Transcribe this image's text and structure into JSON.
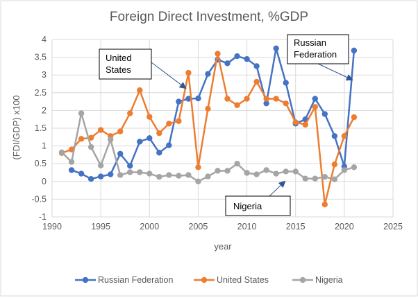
{
  "chart_data": {
    "type": "line",
    "title": "Foreign Direct Investment, %GDP",
    "xlabel": "year",
    "ylabel": "(FDI/GDP) x100",
    "xlim": [
      1990,
      2025
    ],
    "ylim": [
      -1,
      4
    ],
    "xticks": [
      "1990",
      "1995",
      "2000",
      "2005",
      "2010",
      "2015",
      "2020",
      "2025"
    ],
    "yticks": [
      "-1",
      "-0.5",
      "0",
      "0.5",
      "1",
      "1.5",
      "2",
      "2.5",
      "3",
      "3.5",
      "4"
    ],
    "grid": true,
    "legend_position": "bottom",
    "series": [
      {
        "name": "Russian Federation",
        "color": "#4472c4",
        "x": [
          1992,
          1993,
          1994,
          1995,
          1996,
          1997,
          1998,
          1999,
          2000,
          2001,
          2002,
          2003,
          2004,
          2005,
          2006,
          2007,
          2008,
          2009,
          2010,
          2011,
          2012,
          2013,
          2014,
          2015,
          2016,
          2017,
          2018,
          2019,
          2020,
          2021
        ],
        "y": [
          0.32,
          0.22,
          0.07,
          0.14,
          0.2,
          0.78,
          0.44,
          1.12,
          1.22,
          0.81,
          1.02,
          2.25,
          2.33,
          2.34,
          3.03,
          3.43,
          3.33,
          3.53,
          3.45,
          3.25,
          2.2,
          3.75,
          2.78,
          1.63,
          1.75,
          2.33,
          1.9,
          1.28,
          0.42,
          3.69
        ]
      },
      {
        "name": "United States",
        "color": "#ed7d31",
        "x": [
          1991,
          1992,
          1993,
          1994,
          1995,
          1996,
          1997,
          1998,
          1999,
          2000,
          2001,
          2002,
          2003,
          2004,
          2005,
          2006,
          2007,
          2008,
          2009,
          2010,
          2011,
          2012,
          2013,
          2014,
          2015,
          2016,
          2017,
          2018,
          2019,
          2020,
          2021
        ],
        "y": [
          0.8,
          0.9,
          1.2,
          1.23,
          1.45,
          1.28,
          1.41,
          1.92,
          2.57,
          1.82,
          1.36,
          1.63,
          1.7,
          3.06,
          0.4,
          2.05,
          3.6,
          2.33,
          2.15,
          2.33,
          2.81,
          2.33,
          2.33,
          2.2,
          1.67,
          1.6,
          2.1,
          -0.65,
          0.48,
          1.28,
          1.81
        ]
      },
      {
        "name": "Nigeria",
        "color": "#a5a5a5",
        "x": [
          1991,
          1992,
          1993,
          1994,
          1995,
          1996,
          1997,
          1998,
          1999,
          2000,
          2001,
          2002,
          2003,
          2004,
          2005,
          2006,
          2007,
          2008,
          2009,
          2010,
          2011,
          2012,
          2013,
          2014,
          2015,
          2016,
          2017,
          2018,
          2019,
          2020,
          2021
        ],
        "y": [
          0.82,
          0.55,
          1.92,
          0.97,
          0.45,
          1.18,
          0.18,
          0.26,
          0.26,
          0.22,
          0.13,
          0.18,
          0.16,
          0.18,
          0.0,
          0.14,
          0.3,
          0.3,
          0.5,
          0.24,
          0.2,
          0.32,
          0.22,
          0.28,
          0.28,
          0.08,
          0.08,
          0.13,
          0.06,
          0.32,
          0.4
        ]
      }
    ],
    "annotations": [
      {
        "text_lines": [
          "United",
          "States"
        ],
        "series": "United States"
      },
      {
        "text_lines": [
          "Russian",
          "Federation"
        ],
        "series": "Russian Federation"
      },
      {
        "text_lines": [
          "Nigeria"
        ],
        "series": "Nigeria"
      }
    ]
  }
}
